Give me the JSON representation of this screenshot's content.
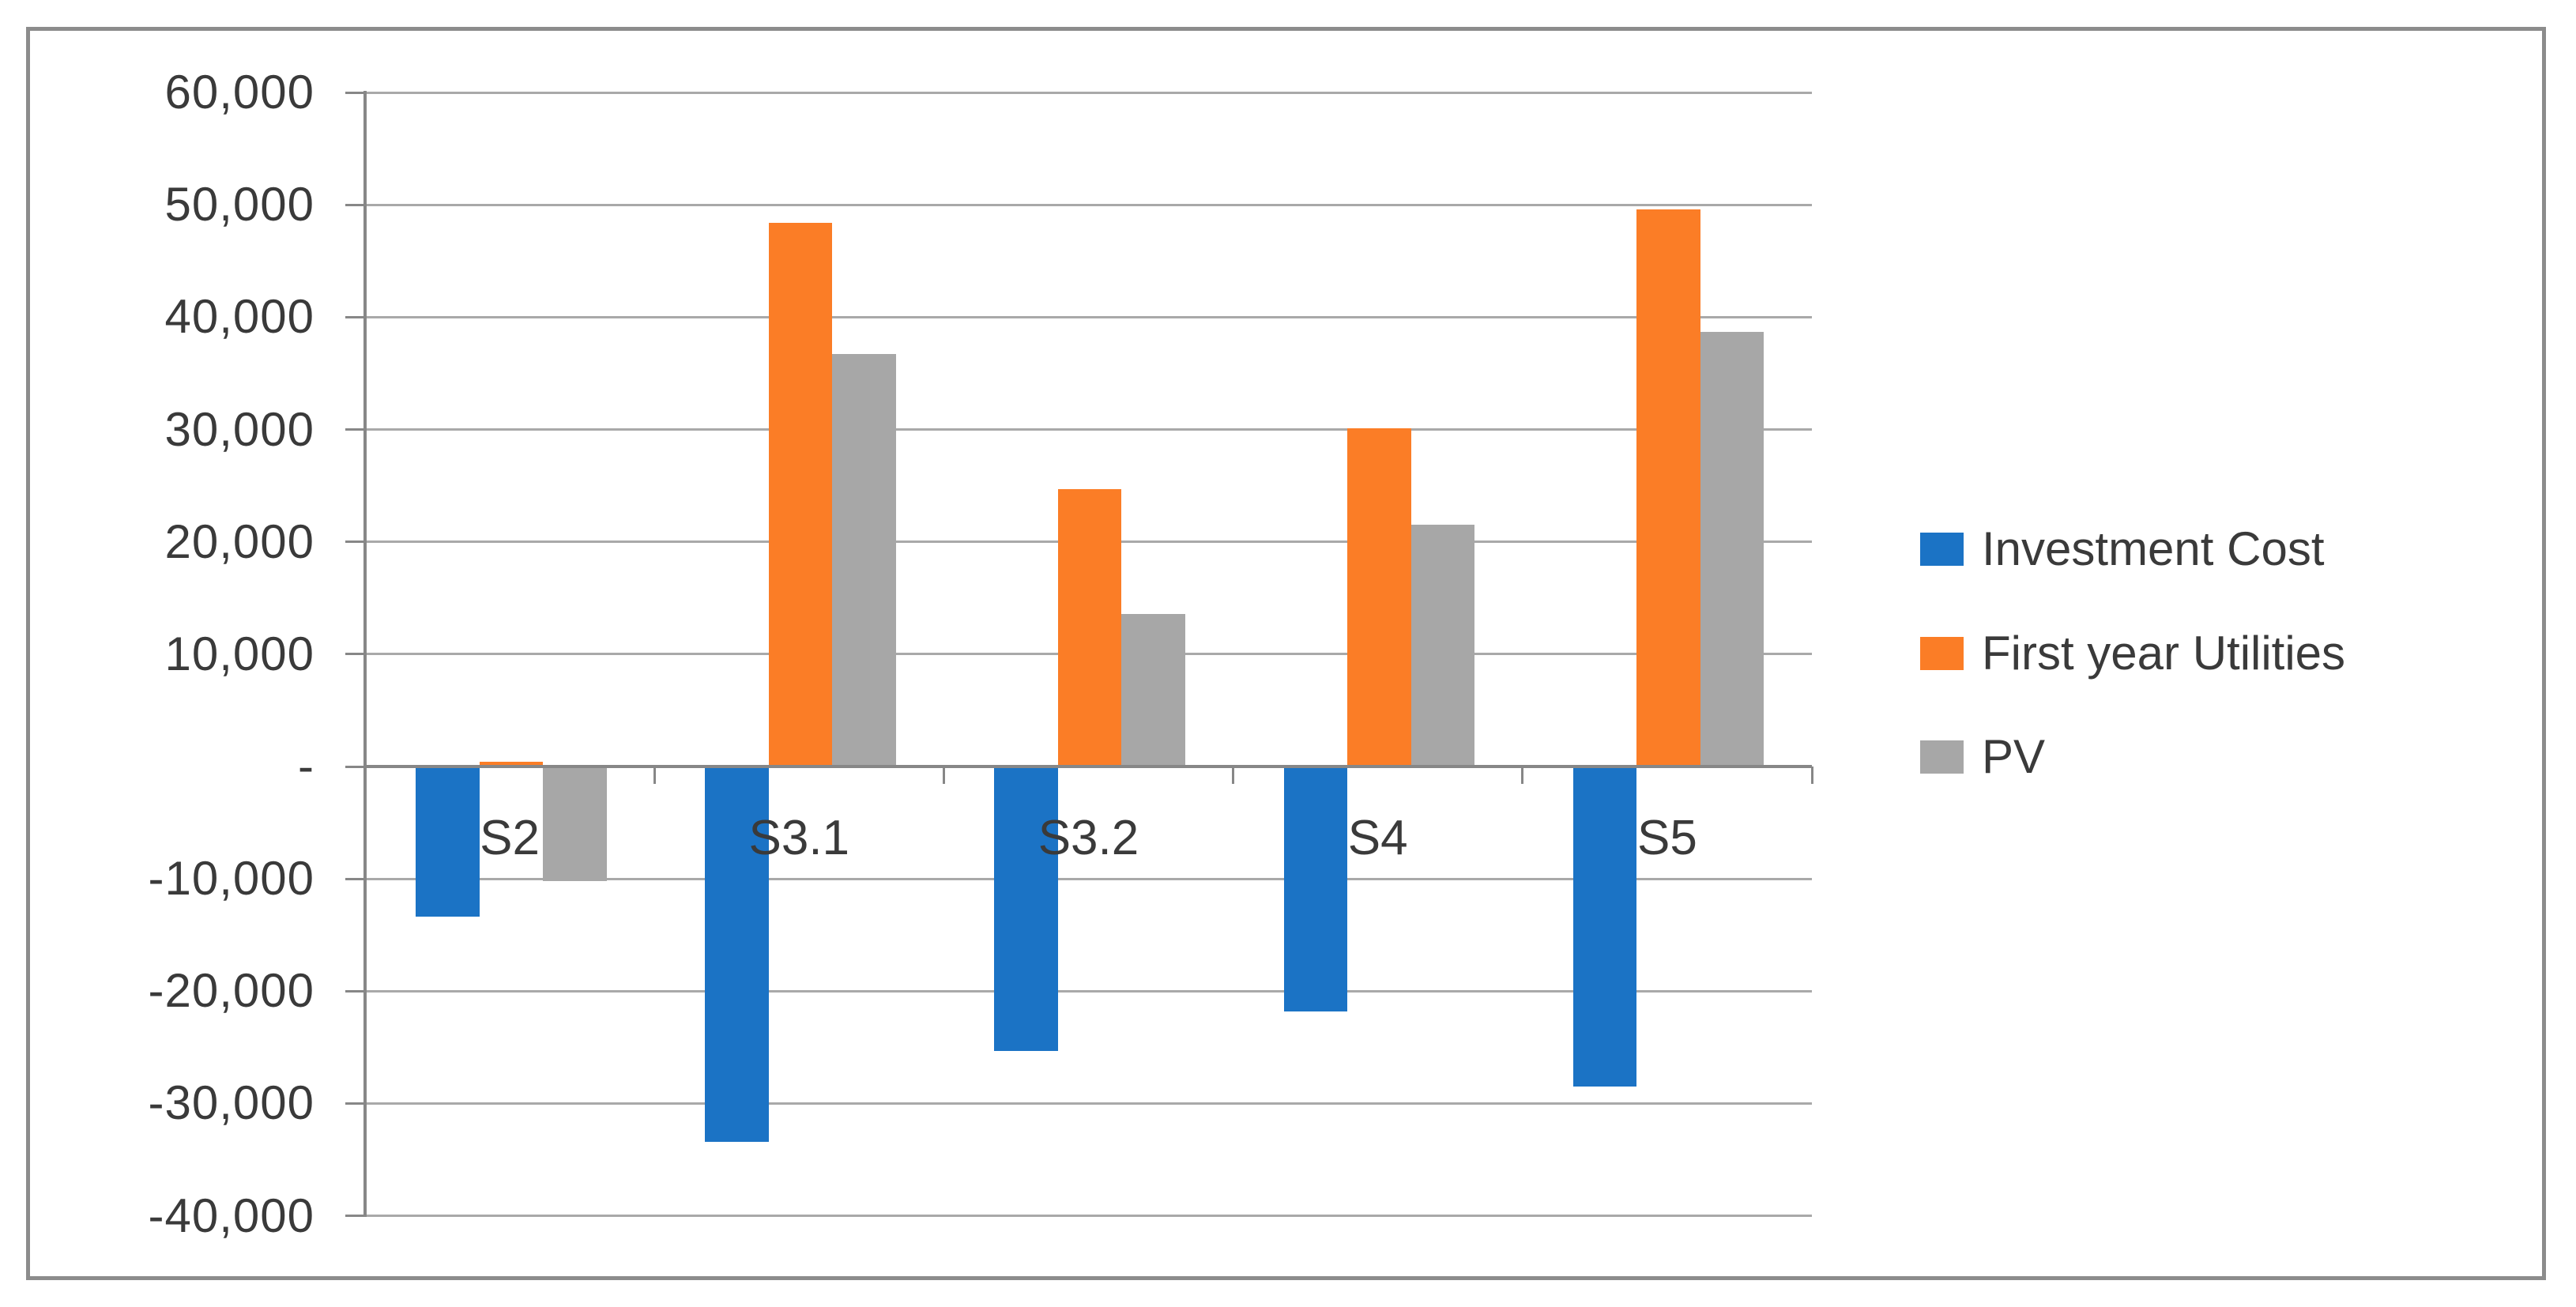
{
  "chart_data": {
    "type": "bar",
    "title": "",
    "xlabel": "",
    "ylabel": "",
    "categories": [
      "S2",
      "S3.1",
      "S3.2",
      "S4",
      "S5"
    ],
    "series": [
      {
        "name": "Investment Cost",
        "color": "#1B73C5",
        "values": [
          -13400,
          -33400,
          -25300,
          -21800,
          -28500
        ]
      },
      {
        "name": "First year Utilities",
        "color": "#FB7D26",
        "values": [
          400,
          48400,
          24700,
          30100,
          49600
        ]
      },
      {
        "name": "PV",
        "color": "#A7A7A7",
        "values": [
          -10200,
          36700,
          13600,
          21500,
          38700
        ]
      }
    ],
    "ylim": [
      -40000,
      60000
    ],
    "ytick_step": 10000,
    "yticks": [
      {
        "value": 60000,
        "label": "60,000"
      },
      {
        "value": 50000,
        "label": "50,000"
      },
      {
        "value": 40000,
        "label": "40,000"
      },
      {
        "value": 30000,
        "label": "30,000"
      },
      {
        "value": 20000,
        "label": "20,000"
      },
      {
        "value": 10000,
        "label": "10,000"
      },
      {
        "value": 0,
        "label": "-"
      },
      {
        "value": -10000,
        "label": "-10,000"
      },
      {
        "value": -20000,
        "label": "-20,000"
      },
      {
        "value": -30000,
        "label": "-30,000"
      },
      {
        "value": -40000,
        "label": "-40,000"
      }
    ],
    "grid": "horizontal",
    "legend_position": "right",
    "colors": {
      "gridline": "#A9A9A9",
      "axis": "#878787",
      "frame_border": "#8C8C8C",
      "text": "#3A3A3A",
      "background": "#FFFFFF"
    }
  }
}
